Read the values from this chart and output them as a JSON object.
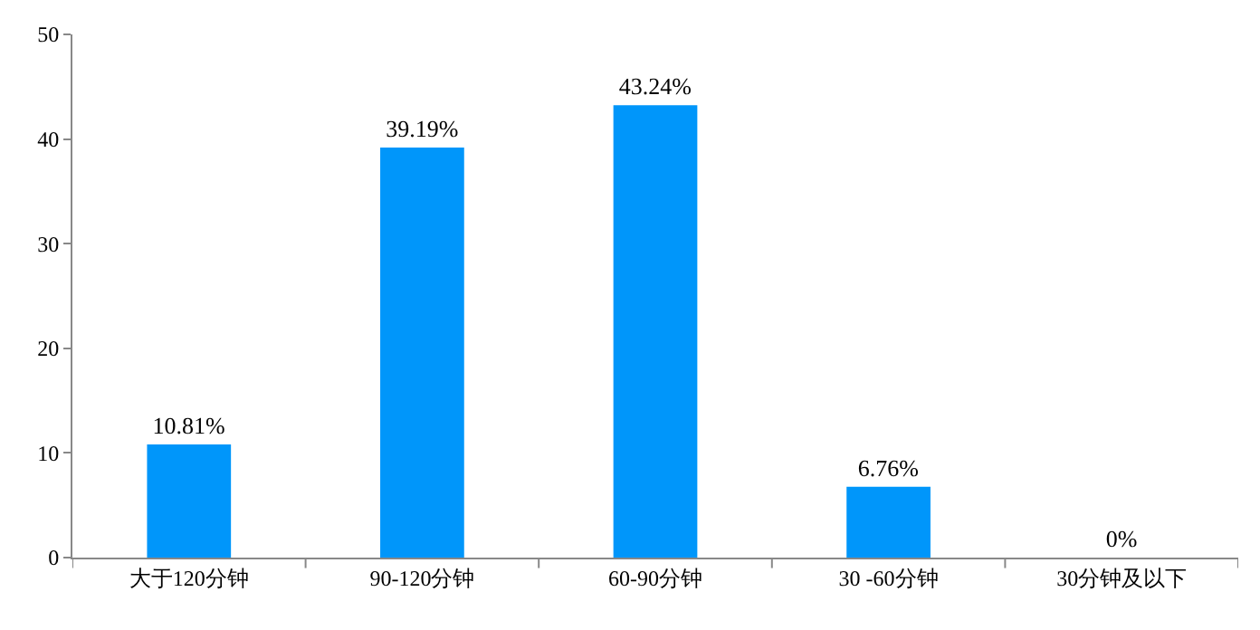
{
  "chart_data": {
    "type": "bar",
    "categories": [
      "大于120分钟",
      "90-120分钟",
      "60-90分钟",
      "30 -60分钟",
      "30分钟及以下"
    ],
    "values": [
      10.81,
      39.19,
      43.24,
      6.76,
      0
    ],
    "value_labels": [
      "10.81%",
      "39.19%",
      "43.24%",
      "6.76%",
      "0%"
    ],
    "color": "#0096fa",
    "ylim": [
      0,
      50
    ],
    "yticks": [
      0,
      10,
      20,
      30,
      40,
      50
    ],
    "legend": false
  }
}
